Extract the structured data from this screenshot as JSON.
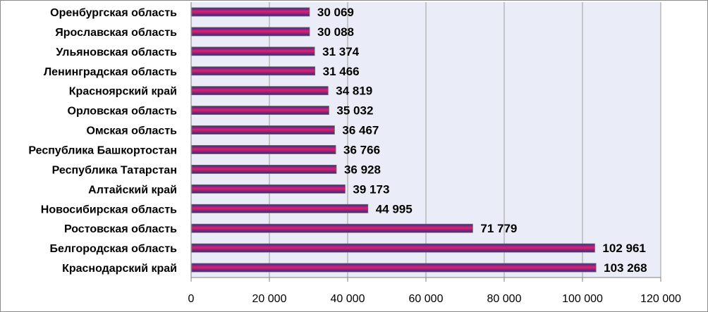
{
  "chart_data": {
    "type": "bar",
    "orientation": "horizontal",
    "categories": [
      "Оренбургская область",
      "Ярославская область",
      "Ульяновская область",
      "Ленинградская область",
      "Красноярский край",
      "Орловская область",
      "Омская область",
      "Республика Башкортостан",
      "Республика Татарстан",
      "Алтайский край",
      "Новосибирская область",
      "Ростовская область",
      "Белгородская область",
      "Краснодарский край"
    ],
    "values": [
      30069,
      30088,
      31374,
      31466,
      34819,
      35032,
      36467,
      36766,
      36928,
      39173,
      44995,
      71779,
      102961,
      103268
    ],
    "value_labels": [
      "30 069",
      "30 088",
      "31 374",
      "31 466",
      "34 819",
      "35 032",
      "36 467",
      "36 766",
      "36 928",
      "39 173",
      "44 995",
      "71 779",
      "102 961",
      "103 268"
    ],
    "xlim": [
      0,
      120000
    ],
    "x_ticks": [
      0,
      20000,
      40000,
      60000,
      80000,
      100000,
      120000
    ],
    "x_tick_labels": [
      "0",
      "20 000",
      "40 000",
      "60 000",
      "80 000",
      "100 000",
      "120 000"
    ],
    "title": "",
    "xlabel": "",
    "ylabel": "",
    "grid": "vertical",
    "legend": "none",
    "colors": {
      "plot_background": "#eaedf7",
      "gridline": "#9a9a9a",
      "bar_top": "#3b2a9a",
      "bar_middle": "#e0206a",
      "bar_bottom": "#2b2a8a",
      "bar_edge": "#6a6a6a"
    }
  }
}
